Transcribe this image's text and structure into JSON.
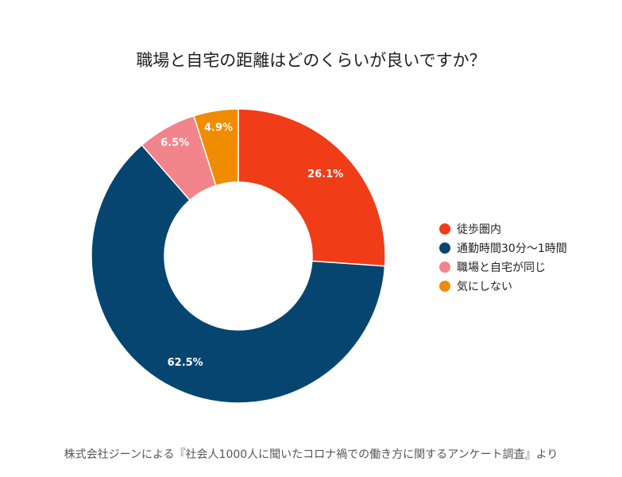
{
  "chart_data": {
    "type": "pie",
    "title": "職場と自宅の距離はどのくらいが良いですか？",
    "series": [
      {
        "name": "徒歩圏内",
        "value": 26.1,
        "label": "26.1%",
        "color": "#f03c17"
      },
      {
        "name": "通勤時間30分〜1時間",
        "value": 62.5,
        "label": "62.5%",
        "color": "#064570"
      },
      {
        "name": "職場と自宅が同じ",
        "value": 6.5,
        "label": "6.5%",
        "color": "#f2848c"
      },
      {
        "name": "気にしない",
        "value": 4.9,
        "label": "4.9%",
        "color": "#f08c00"
      }
    ],
    "legend_position": "right",
    "donut": true
  },
  "source_note": "株式会社ジーンによる『社会人1000人に聞いたコロナ禍での働き方に関するアンケート調査』より"
}
